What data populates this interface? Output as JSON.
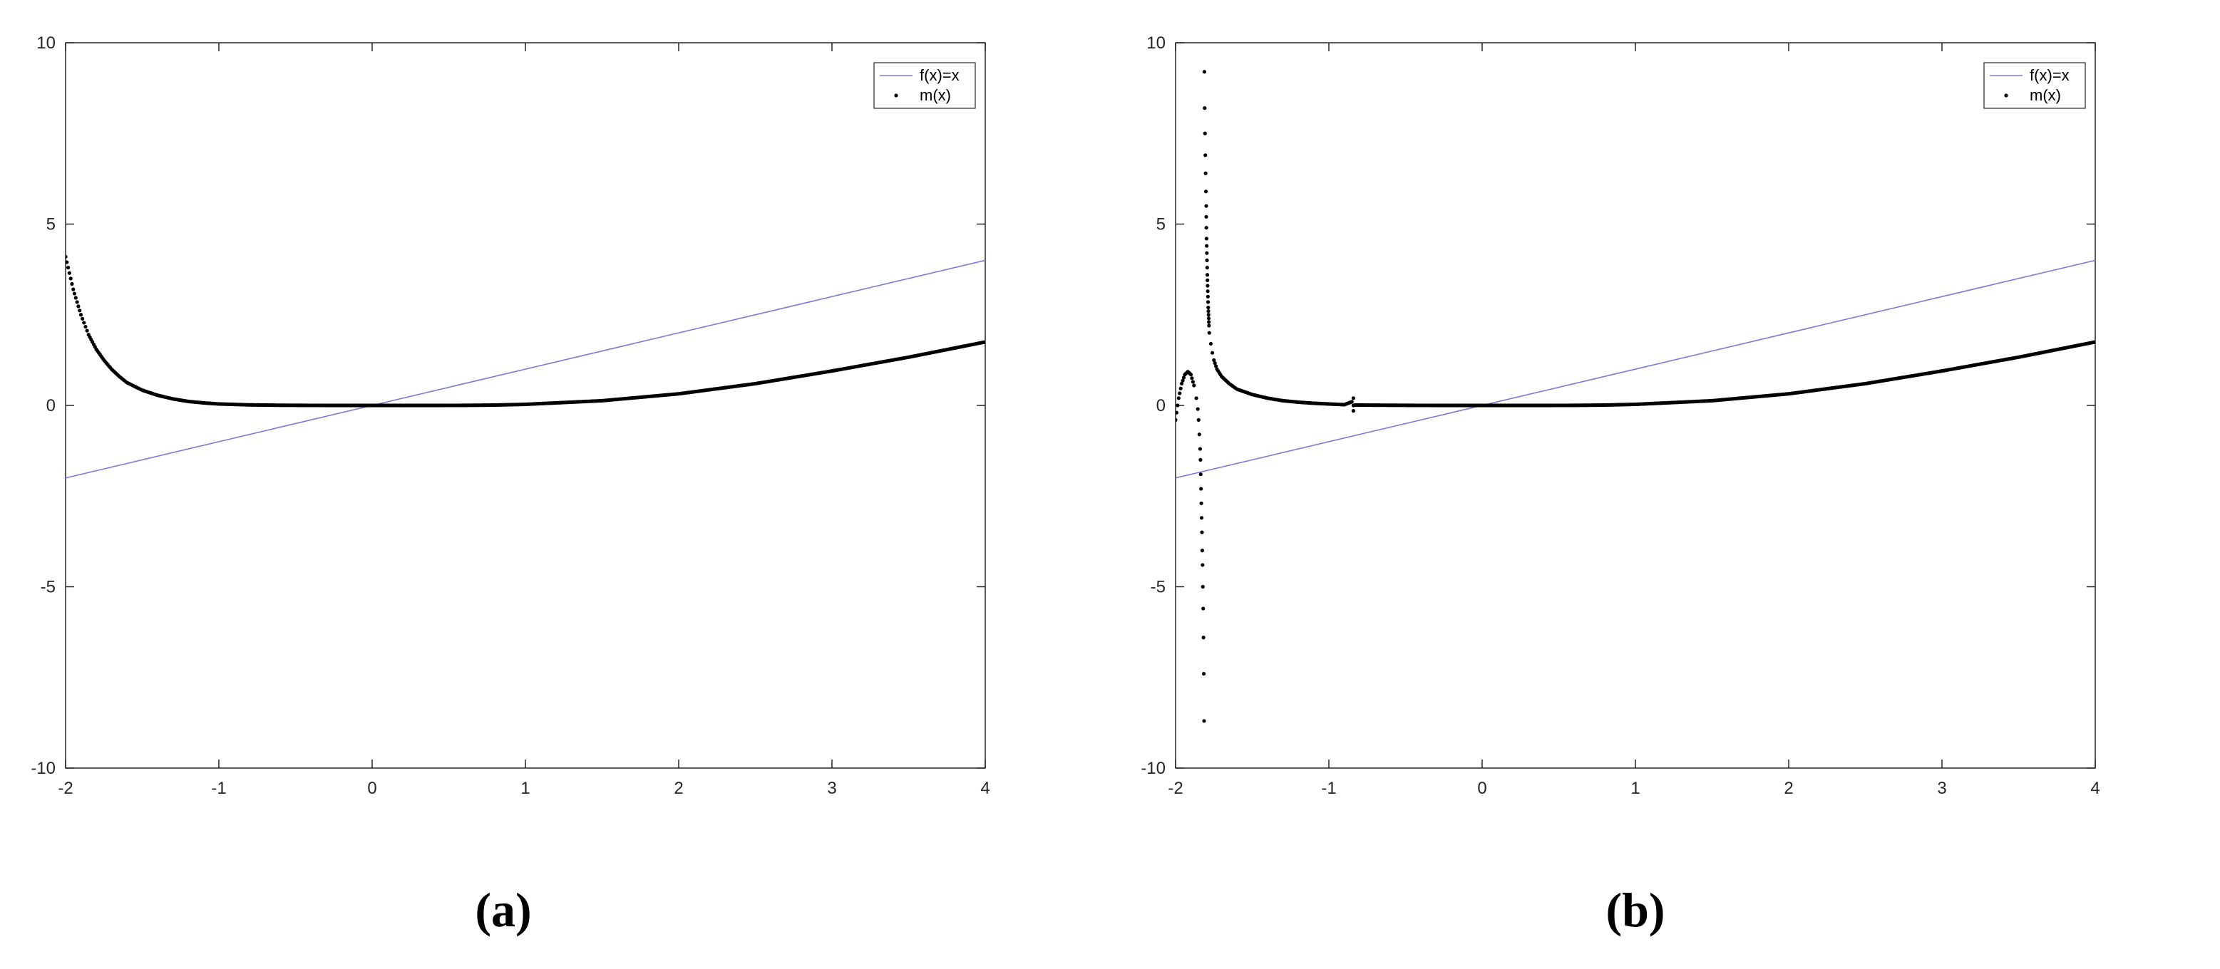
{
  "chart_data": [
    {
      "type": "scatter",
      "caption": "(a)",
      "xlim": [
        -2,
        4
      ],
      "ylim": [
        -10,
        10
      ],
      "xticks": [
        "-2",
        "-1",
        "0",
        "1",
        "2",
        "3",
        "4"
      ],
      "yticks": [
        "10",
        "5",
        "0",
        "-5",
        "-10"
      ],
      "legend_position": "top-right",
      "series": [
        {
          "name": "f(x)=x",
          "kind": "line",
          "color": "#7b7bd6",
          "x": [
            -2,
            4
          ],
          "y": [
            -2,
            4
          ]
        },
        {
          "name": "m(x)",
          "kind": "points",
          "color": "#000000",
          "x": [
            -2.0,
            -1.95,
            -1.9,
            -1.85,
            -1.8,
            -1.75,
            -1.7,
            -1.65,
            -1.6,
            -1.5,
            -1.4,
            -1.3,
            -1.2,
            -1.1,
            -1.0,
            -0.8,
            -0.6,
            -0.4,
            -0.2,
            0.0,
            0.2,
            0.4,
            0.6,
            0.8,
            1.0,
            1.5,
            2.0,
            2.5,
            3.0,
            3.5,
            4.0
          ],
          "y": [
            4.1,
            3.2,
            2.5,
            1.95,
            1.55,
            1.25,
            1.0,
            0.8,
            0.63,
            0.42,
            0.28,
            0.18,
            0.11,
            0.07,
            0.04,
            0.015,
            0.005,
            0.001,
            0.0,
            0.0,
            0.0,
            0.0,
            0.002,
            0.01,
            0.03,
            0.13,
            0.32,
            0.6,
            0.95,
            1.33,
            1.75
          ]
        }
      ]
    },
    {
      "type": "scatter",
      "caption": "(b)",
      "xlim": [
        -2,
        4
      ],
      "ylim": [
        -10,
        10
      ],
      "xticks": [
        "-2",
        "-1",
        "0",
        "1",
        "2",
        "3",
        "4"
      ],
      "yticks": [
        "10",
        "5",
        "0",
        "-5",
        "-10"
      ],
      "legend_position": "top-right",
      "series": [
        {
          "name": "f(x)=x",
          "kind": "line",
          "color": "#7b7bd6",
          "x": [
            -2,
            4
          ],
          "y": [
            -2,
            4
          ]
        },
        {
          "name": "m(x)",
          "kind": "points",
          "color": "#000000",
          "x": [
            -2.0,
            -1.98,
            -1.96,
            -1.94,
            -1.92,
            -1.9,
            -1.88,
            -1.865,
            -1.855,
            -1.85,
            -1.845,
            -1.84,
            -1.838,
            -1.836,
            -1.834,
            -1.832,
            -1.83,
            -1.828,
            -1.826,
            -1.824,
            -1.822,
            -1.82,
            -1.818,
            -1.816,
            -1.814,
            -1.812,
            -1.81,
            -1.808,
            -1.806,
            -1.804,
            -1.802,
            -1.8,
            -1.8,
            -1.799,
            -1.798,
            -1.797,
            -1.796,
            -1.795,
            -1.794,
            -1.793,
            -1.792,
            -1.791,
            -1.79,
            -1.789,
            -1.788,
            -1.787,
            -1.786,
            -1.785,
            -1.784,
            -1.783,
            -1.782,
            -1.78,
            -1.77,
            -1.76,
            -1.75,
            -1.73,
            -1.7,
            -1.65,
            -1.6,
            -1.5,
            -1.4,
            -1.3,
            -1.2,
            -1.1,
            -1.0,
            -0.9,
            -0.85,
            -0.84,
            -0.84,
            -0.84,
            -0.83,
            -0.8,
            -0.6,
            -0.4,
            -0.2,
            0.0,
            0.2,
            0.4,
            0.6,
            0.8,
            1.0,
            1.5,
            2.0,
            2.5,
            3.0,
            3.5,
            4.0
          ],
          "y": [
            -0.4,
            0.2,
            0.6,
            0.85,
            0.93,
            0.85,
            0.55,
            0.2,
            -0.1,
            -0.4,
            -0.8,
            -1.2,
            -1.5,
            -1.9,
            -2.3,
            -2.7,
            -3.1,
            -3.5,
            -4.0,
            -4.4,
            -5.0,
            -5.6,
            -6.4,
            -7.4,
            -8.7,
            9.2,
            8.2,
            7.5,
            6.9,
            6.4,
            5.9,
            5.5,
            5.2,
            4.9,
            4.6,
            4.4,
            4.2,
            4.0,
            3.8,
            3.6,
            3.45,
            3.3,
            3.15,
            3.0,
            2.85,
            2.7,
            2.6,
            2.5,
            2.4,
            2.3,
            2.2,
            2.0,
            1.7,
            1.45,
            1.25,
            1.0,
            0.8,
            0.6,
            0.45,
            0.3,
            0.2,
            0.13,
            0.09,
            0.06,
            0.04,
            0.02,
            0.1,
            0.2,
            0.0,
            -0.15,
            0.01,
            0.01,
            0.005,
            0.001,
            0.0,
            0.0,
            0.0,
            0.0,
            0.002,
            0.01,
            0.03,
            0.13,
            0.32,
            0.6,
            0.95,
            1.33,
            1.75
          ]
        }
      ]
    }
  ]
}
